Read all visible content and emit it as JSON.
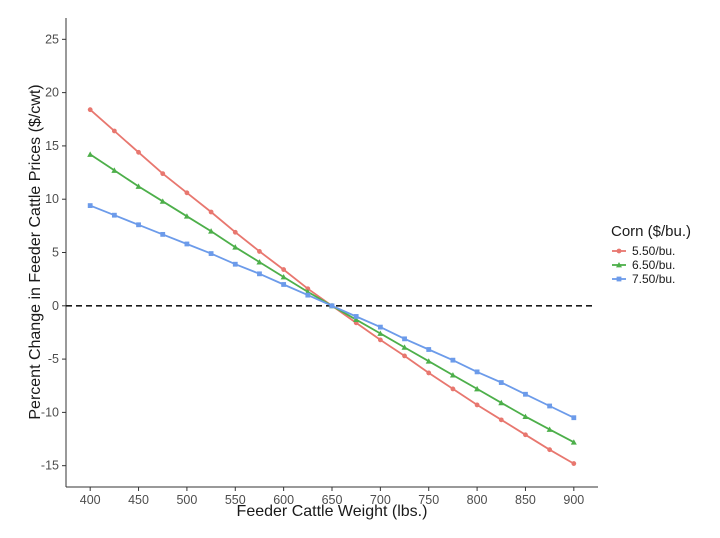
{
  "chart_data": {
    "type": "line",
    "title": "",
    "xlabel": "Feeder Cattle Weight (lbs.)",
    "ylabel": "Percent Change in Feeder Cattle Prices ($/cwt)",
    "xlim": [
      375,
      925
    ],
    "ylim": [
      -17,
      27
    ],
    "x_ticks": [
      400,
      450,
      500,
      550,
      600,
      650,
      700,
      750,
      800,
      850,
      900
    ],
    "y_ticks": [
      -15,
      -10,
      -5,
      0,
      5,
      10,
      15,
      20,
      25
    ],
    "x": [
      400,
      425,
      450,
      475,
      500,
      525,
      550,
      575,
      600,
      625,
      650,
      675,
      700,
      725,
      750,
      775,
      800,
      825,
      850,
      875,
      900
    ],
    "reference_line": {
      "y": 0,
      "style": "dashed",
      "color": "#1a1a1a"
    },
    "grid": false,
    "legend": {
      "title": "Corn ($/bu.)",
      "position": "right"
    },
    "series": [
      {
        "name": "5.50/bu.",
        "color": "#E8776F",
        "marker": "circle",
        "values": [
          18.4,
          16.4,
          14.4,
          12.4,
          10.6,
          8.8,
          6.9,
          5.1,
          3.4,
          1.6,
          0.0,
          -1.6,
          -3.2,
          -4.7,
          -6.3,
          -7.8,
          -9.3,
          -10.7,
          -12.1,
          -13.5,
          -14.8
        ]
      },
      {
        "name": "6.50/bu.",
        "color": "#4DAF4A",
        "marker": "triangle",
        "values": [
          14.2,
          12.7,
          11.2,
          9.8,
          8.4,
          7.0,
          5.5,
          4.1,
          2.7,
          1.3,
          0.0,
          -1.3,
          -2.6,
          -3.9,
          -5.2,
          -6.5,
          -7.8,
          -9.1,
          -10.4,
          -11.6,
          -12.8
        ]
      },
      {
        "name": "7.50/bu.",
        "color": "#6C9BEA",
        "marker": "square",
        "values": [
          9.4,
          8.5,
          7.6,
          6.7,
          5.8,
          4.9,
          3.9,
          3.0,
          2.0,
          1.0,
          0.0,
          -1.0,
          -2.0,
          -3.1,
          -4.1,
          -5.1,
          -6.2,
          -7.2,
          -8.3,
          -9.4,
          -10.5
        ]
      }
    ]
  }
}
